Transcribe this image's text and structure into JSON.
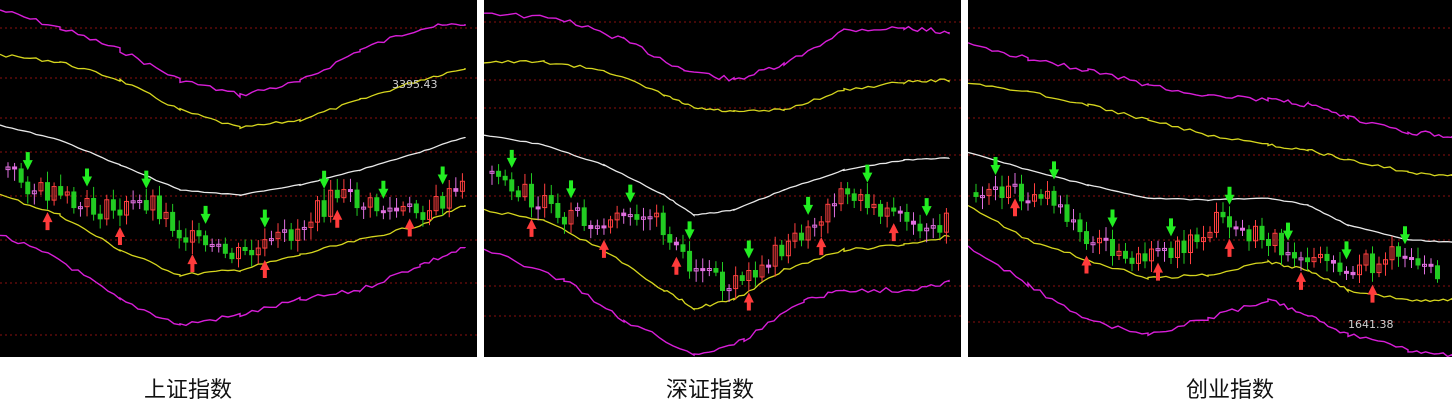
{
  "colors": {
    "background": "#000000",
    "outer_band": "#d81ed8",
    "inner_band": "#d6d61e",
    "mid_line": "#e8e8e8",
    "candle_up": "#ff4040",
    "candle_down": "#22cc22",
    "candle_flat": "#e070e0",
    "buy_arrow": "#ff3b3b",
    "sell_arrow": "#22ee22",
    "grid": "#8a1010"
  },
  "chart_data": [
    {
      "type": "candlestick",
      "title": "上证指数",
      "annotation": "3395.43",
      "candles": [
        [
          110,
          95,
          88,
          115
        ],
        [
          95,
          100,
          92,
          108
        ],
        [
          100,
          110,
          96,
          114
        ],
        [
          110,
          135,
          105,
          140
        ],
        [
          135,
          145,
          128,
          150
        ],
        [
          145,
          160,
          138,
          165
        ],
        [
          160,
          168,
          155,
          172
        ],
        [
          168,
          172,
          160,
          176
        ],
        [
          172,
          178,
          166,
          180
        ],
        [
          178,
          195,
          170,
          200
        ],
        [
          195,
          200,
          185,
          203
        ],
        [
          200,
          190,
          183,
          205
        ],
        [
          190,
          185,
          178,
          194
        ],
        [
          185,
          186,
          180,
          192
        ],
        [
          186,
          183,
          178,
          189
        ],
        [
          183,
          198,
          178,
          203
        ],
        [
          198,
          205,
          195,
          210
        ],
        [
          205,
          210,
          200,
          214
        ],
        [
          210,
          220,
          206,
          224
        ],
        [
          220,
          228,
          214,
          232
        ],
        [
          228,
          238,
          222,
          243
        ],
        [
          238,
          242,
          232,
          246
        ],
        [
          242,
          246,
          238,
          250
        ],
        [
          246,
          252,
          240,
          256
        ],
        [
          252,
          240,
          235,
          256
        ],
        [
          240,
          228,
          224,
          245
        ],
        [
          228,
          222,
          216,
          232
        ],
        [
          222,
          215,
          210,
          228
        ],
        [
          215,
          210,
          206,
          220
        ],
        [
          210,
          240,
          205,
          245
        ],
        [
          240,
          236,
          230,
          244
        ],
        [
          236,
          222,
          218,
          240
        ],
        [
          222,
          228,
          218,
          232
        ],
        [
          228,
          240,
          222,
          245
        ],
        [
          240,
          245,
          235,
          248
        ],
        [
          245,
          242,
          238,
          250
        ],
        [
          242,
          262,
          240,
          272
        ],
        [
          262,
          270,
          256,
          274
        ],
        [
          270,
          262,
          256,
          275
        ],
        [
          262,
          248,
          244,
          266
        ],
        [
          248,
          240,
          236,
          252
        ],
        [
          240,
          222,
          218,
          244
        ],
        [
          222,
          218,
          212,
          226
        ],
        [
          218,
          205,
          200,
          222
        ],
        [
          205,
          208,
          198,
          212
        ],
        [
          208,
          215,
          202,
          220
        ],
        [
          215,
          225,
          210,
          228
        ],
        [
          225,
          235,
          220,
          240
        ],
        [
          235,
          238,
          230,
          242
        ],
        [
          238,
          230,
          226,
          242
        ],
        [
          230,
          222,
          218,
          234
        ],
        [
          222,
          210,
          206,
          225
        ],
        [
          210,
          205,
          200,
          214
        ],
        [
          205,
          200,
          198,
          208
        ],
        [
          200,
          196,
          192,
          204
        ],
        [
          196,
          195,
          190,
          200
        ],
        [
          195,
          192,
          188,
          198
        ],
        [
          192,
          195,
          188,
          200
        ],
        [
          195,
          200,
          190,
          204
        ],
        [
          200,
          198,
          194,
          204
        ],
        [
          198,
          192,
          188,
          202
        ],
        [
          192,
          190,
          185,
          196
        ],
        [
          190,
          185,
          180,
          194
        ],
        [
          185,
          180,
          176,
          190
        ],
        [
          180,
          178,
          172,
          184
        ],
        [
          178,
          170,
          166,
          182
        ],
        [
          170,
          165,
          160,
          174
        ],
        [
          165,
          158,
          154,
          170
        ],
        [
          158,
          160,
          152,
          164
        ],
        [
          160,
          168,
          155,
          172
        ],
        [
          168,
          165,
          160,
          172
        ],
        [
          165,
          158,
          154,
          170
        ],
        [
          158,
          150,
          146,
          162
        ],
        [
          150,
          152,
          146,
          156
        ],
        [
          152,
          150,
          145,
          158
        ],
        [
          150,
          146,
          142,
          154
        ],
        [
          146,
          140,
          134,
          150
        ],
        [
          140,
          125,
          120,
          145
        ],
        [
          125,
          150,
          118,
          160
        ],
        [
          150,
          160,
          145,
          165
        ],
        [
          160,
          165,
          155,
          170
        ],
        [
          165,
          158,
          152,
          170
        ],
        [
          158,
          150,
          146,
          162
        ],
        [
          150,
          130,
          126,
          154
        ],
        [
          130,
          128,
          122,
          135
        ],
        [
          128,
          120,
          116,
          132
        ],
        [
          120,
          110,
          104,
          124
        ],
        [
          110,
          90,
          86,
          114
        ],
        [
          90,
          100,
          84,
          104
        ]
      ]
    },
    {
      "type": "candlestick",
      "title": "深证指数",
      "candles": []
    },
    {
      "type": "candlestick",
      "title": "创业指数",
      "annotation": "1641.38",
      "candles": []
    }
  ]
}
